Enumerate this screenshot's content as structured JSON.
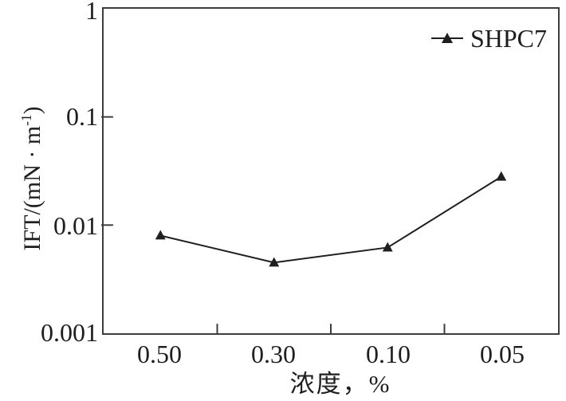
{
  "chart_data": {
    "type": "line",
    "title": "",
    "xlabel": "浓度，%",
    "ylabel": "IFT/(mN · m⁻¹)",
    "ylabel_parts": {
      "main": "IFT/(mN · m",
      "sup": "-1",
      "close": ")"
    },
    "categories": [
      "0.50",
      "0.30",
      "0.10",
      "0.05"
    ],
    "series": [
      {
        "name": "SHPC7",
        "values": [
          0.008,
          0.0045,
          0.0062,
          0.028
        ],
        "marker": "filled-triangle",
        "color": "#1f1f1f"
      }
    ],
    "y_axis": {
      "scale": "log",
      "min": 0.001,
      "max": 1,
      "ticks": [
        {
          "value": 1,
          "label": "1"
        },
        {
          "value": 0.1,
          "label": "0.1"
        },
        {
          "value": 0.01,
          "label": "0.01"
        },
        {
          "value": 0.001,
          "label": "0.001"
        }
      ]
    },
    "x_axis": {
      "type": "category",
      "tick_style": "boundaries-between-bins"
    },
    "legend": {
      "position": "top-right",
      "entries": [
        "SHPC7"
      ]
    },
    "grid": "off"
  },
  "colors": {
    "line": "#1f1f1f",
    "frame": "#3d3d3d",
    "text": "#1e1e1e",
    "background": "#ffffff"
  }
}
